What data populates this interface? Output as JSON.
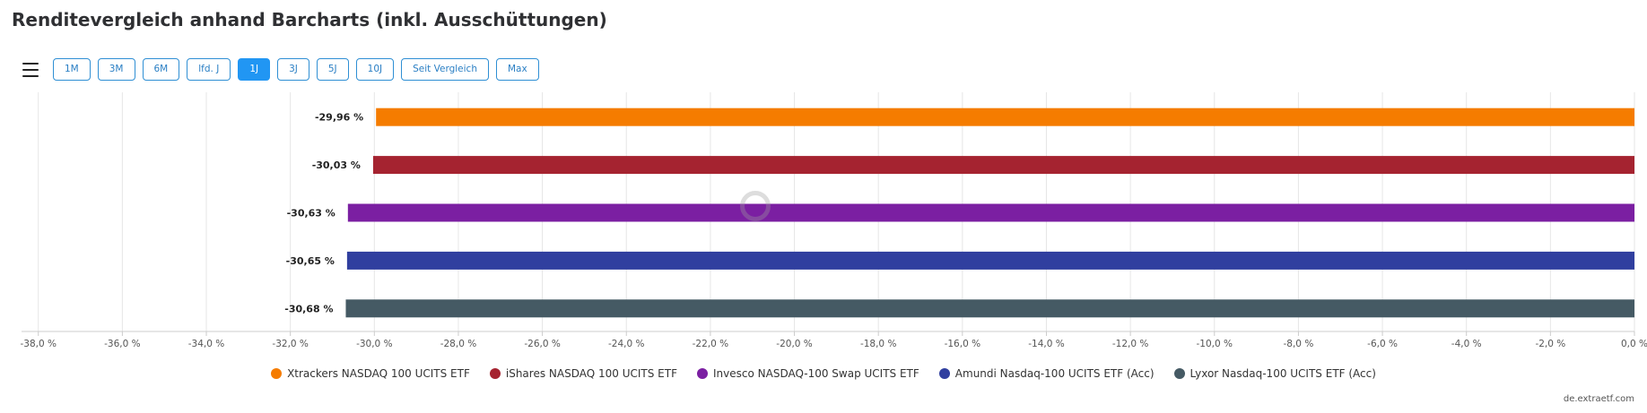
{
  "header": {
    "title": "Renditevergleich anhand Barcharts (inkl. Ausschüttungen)"
  },
  "toolbar": {
    "menu_icon": "hamburger-menu-icon",
    "ranges": [
      {
        "label": "1M",
        "active": false
      },
      {
        "label": "3M",
        "active": false
      },
      {
        "label": "6M",
        "active": false
      },
      {
        "label": "lfd. J",
        "active": false
      },
      {
        "label": "1J",
        "active": true
      },
      {
        "label": "3J",
        "active": false
      },
      {
        "label": "5J",
        "active": false
      },
      {
        "label": "10J",
        "active": false
      },
      {
        "label": "Seit Vergleich",
        "active": false
      },
      {
        "label": "Max",
        "active": false
      }
    ]
  },
  "chart_data": {
    "type": "bar",
    "orientation": "horizontal",
    "categories": [
      "Xtrackers NASDAQ 100 UCITS ETF",
      "iShares NASDAQ 100 UCITS ETF",
      "Invesco NASDAQ-100 Swap UCITS ETF",
      "Amundi Nasdaq-100 UCITS ETF (Acc)",
      "Lyxor Nasdaq-100 UCITS ETF (Acc)"
    ],
    "values": [
      -29.96,
      -30.03,
      -30.63,
      -30.65,
      -30.68
    ],
    "data_labels": [
      "-29,96 %",
      "-30,03 %",
      "-30,63 %",
      "-30,65 %",
      "-30,68 %"
    ],
    "colors": [
      "#f57c00",
      "#a52330",
      "#7b1fa2",
      "#303f9f",
      "#455a64"
    ],
    "xlim": [
      -38.4,
      0
    ],
    "x_ticks": [
      -38,
      -36,
      -34,
      -32,
      -30,
      -28,
      -26,
      -24,
      -22,
      -20,
      -18,
      -16,
      -14,
      -12,
      -10,
      -8,
      -6,
      -4,
      -2,
      0
    ],
    "x_tick_labels": [
      "-38,0 %",
      "-36,0 %",
      "-34,0 %",
      "-32,0 %",
      "-30,0 %",
      "-28,0 %",
      "-26,0 %",
      "-24,0 %",
      "-22,0 %",
      "-20,0 %",
      "-18,0 %",
      "-16,0 %",
      "-14,0 %",
      "-12,0 %",
      "-10,0 %",
      "-8,0 %",
      "-6,0 %",
      "-4,0 %",
      "-2,0 %",
      "0,0 %"
    ],
    "grid": true,
    "legend_position": "bottom-center",
    "watermark_icon": "extraetf-logo-icon"
  },
  "footer": {
    "credit": "de.extraetf.com"
  }
}
